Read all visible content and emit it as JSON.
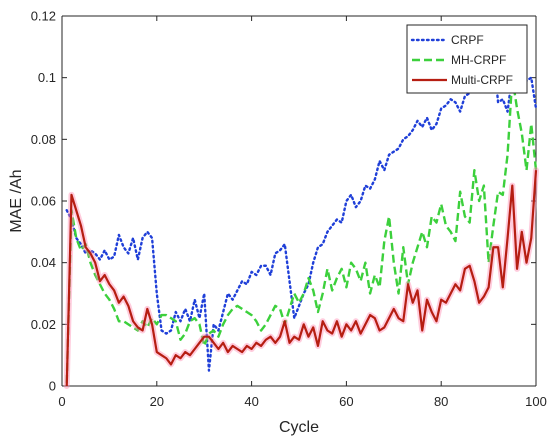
{
  "chart_data": {
    "type": "line",
    "title": "",
    "xlabel": "Cycle",
    "ylabel": "MAE /Ah",
    "xlim": [
      0,
      100
    ],
    "ylim": [
      0,
      0.12
    ],
    "xticks": [
      0,
      20,
      40,
      60,
      80,
      100
    ],
    "yticks": [
      0,
      0.02,
      0.04,
      0.06,
      0.08,
      0.1,
      0.12
    ],
    "xtick_labels": [
      "0",
      "20",
      "40",
      "60",
      "80",
      "100"
    ],
    "ytick_labels": [
      "0",
      "0.02",
      "0.04",
      "0.06",
      "0.08",
      "0.1",
      "0.12"
    ],
    "grid": false,
    "legend_position": "top-right",
    "series": [
      {
        "name": "CRPF",
        "color": "#1f3fd8",
        "style": "dotted",
        "x": [
          1,
          2,
          3,
          4,
          5,
          6,
          7,
          8,
          9,
          10,
          11,
          12,
          13,
          14,
          15,
          16,
          17,
          18,
          19,
          20,
          21,
          22,
          23,
          24,
          25,
          26,
          27,
          28,
          29,
          30,
          31,
          32,
          33,
          34,
          35,
          36,
          37,
          38,
          39,
          40,
          41,
          42,
          43,
          44,
          45,
          46,
          47,
          48,
          49,
          50,
          51,
          52,
          53,
          54,
          55,
          56,
          57,
          58,
          59,
          60,
          61,
          62,
          63,
          64,
          65,
          66,
          67,
          68,
          69,
          70,
          71,
          72,
          73,
          74,
          75,
          76,
          77,
          78,
          79,
          80,
          81,
          82,
          83,
          84,
          85,
          86,
          87,
          88,
          89,
          90,
          91,
          92,
          93,
          94,
          95,
          96,
          97,
          98,
          99,
          100
        ],
        "values": [
          0.057,
          0.054,
          0.048,
          0.046,
          0.043,
          0.044,
          0.043,
          0.041,
          0.044,
          0.041,
          0.042,
          0.049,
          0.045,
          0.043,
          0.048,
          0.041,
          0.048,
          0.05,
          0.048,
          0.03,
          0.018,
          0.017,
          0.018,
          0.024,
          0.021,
          0.025,
          0.021,
          0.028,
          0.022,
          0.03,
          0.005,
          0.02,
          0.018,
          0.024,
          0.03,
          0.028,
          0.031,
          0.034,
          0.033,
          0.037,
          0.036,
          0.039,
          0.039,
          0.036,
          0.043,
          0.044,
          0.046,
          0.034,
          0.022,
          0.026,
          0.03,
          0.033,
          0.04,
          0.045,
          0.046,
          0.05,
          0.052,
          0.054,
          0.053,
          0.06,
          0.062,
          0.058,
          0.06,
          0.065,
          0.064,
          0.067,
          0.073,
          0.07,
          0.075,
          0.076,
          0.077,
          0.08,
          0.081,
          0.083,
          0.086,
          0.084,
          0.087,
          0.083,
          0.085,
          0.09,
          0.091,
          0.093,
          0.092,
          0.089,
          0.094,
          0.095,
          0.097,
          0.099,
          0.097,
          0.106,
          0.108,
          0.092,
          0.093,
          0.089,
          0.101,
          0.099,
          0.096,
          0.099,
          0.1,
          0.09
        ]
      },
      {
        "name": "MH-CRPF",
        "color": "#3cd03c",
        "style": "dashed",
        "x": [
          1,
          2,
          3,
          4,
          5,
          6,
          7,
          8,
          9,
          10,
          11,
          12,
          13,
          14,
          15,
          16,
          17,
          18,
          19,
          20,
          21,
          22,
          23,
          24,
          25,
          26,
          27,
          28,
          29,
          30,
          31,
          32,
          33,
          34,
          35,
          36,
          37,
          38,
          39,
          40,
          41,
          42,
          43,
          44,
          45,
          46,
          47,
          48,
          49,
          50,
          51,
          52,
          53,
          54,
          55,
          56,
          57,
          58,
          59,
          60,
          61,
          62,
          63,
          64,
          65,
          66,
          67,
          68,
          69,
          70,
          71,
          72,
          73,
          74,
          75,
          76,
          77,
          78,
          79,
          80,
          81,
          82,
          83,
          84,
          85,
          86,
          87,
          88,
          89,
          90,
          91,
          92,
          93,
          94,
          95,
          96,
          97,
          98,
          99,
          100
        ],
        "values": [
          0.001,
          0.057,
          0.048,
          0.044,
          0.046,
          0.04,
          0.036,
          0.033,
          0.03,
          0.028,
          0.025,
          0.021,
          0.021,
          0.02,
          0.019,
          0.018,
          0.021,
          0.019,
          0.022,
          0.02,
          0.023,
          0.023,
          0.022,
          0.021,
          0.015,
          0.017,
          0.021,
          0.022,
          0.02,
          0.013,
          0.017,
          0.018,
          0.016,
          0.02,
          0.023,
          0.025,
          0.026,
          0.025,
          0.024,
          0.023,
          0.021,
          0.018,
          0.02,
          0.023,
          0.026,
          0.025,
          0.02,
          0.025,
          0.03,
          0.027,
          0.03,
          0.035,
          0.031,
          0.024,
          0.03,
          0.038,
          0.031,
          0.035,
          0.038,
          0.032,
          0.04,
          0.038,
          0.034,
          0.04,
          0.03,
          0.036,
          0.032,
          0.047,
          0.055,
          0.04,
          0.03,
          0.045,
          0.033,
          0.04,
          0.045,
          0.05,
          0.045,
          0.055,
          0.053,
          0.059,
          0.052,
          0.05,
          0.047,
          0.063,
          0.055,
          0.053,
          0.07,
          0.06,
          0.065,
          0.04,
          0.052,
          0.063,
          0.062,
          0.075,
          0.1,
          0.09,
          0.082,
          0.07,
          0.085,
          0.07
        ]
      },
      {
        "name": "Multi-CRPF",
        "color": "#b61e12",
        "style": "solid",
        "x": [
          1,
          2,
          3,
          4,
          5,
          6,
          7,
          8,
          9,
          10,
          11,
          12,
          13,
          14,
          15,
          16,
          17,
          18,
          19,
          20,
          21,
          22,
          23,
          24,
          25,
          26,
          27,
          28,
          29,
          30,
          31,
          32,
          33,
          34,
          35,
          36,
          37,
          38,
          39,
          40,
          41,
          42,
          43,
          44,
          45,
          46,
          47,
          48,
          49,
          50,
          51,
          52,
          53,
          54,
          55,
          56,
          57,
          58,
          59,
          60,
          61,
          62,
          63,
          64,
          65,
          66,
          67,
          68,
          69,
          70,
          71,
          72,
          73,
          74,
          75,
          76,
          77,
          78,
          79,
          80,
          81,
          82,
          83,
          84,
          85,
          86,
          87,
          88,
          89,
          90,
          91,
          92,
          93,
          94,
          95,
          96,
          97,
          98,
          99,
          100
        ],
        "values": [
          0.0,
          0.062,
          0.057,
          0.052,
          0.045,
          0.043,
          0.04,
          0.034,
          0.036,
          0.033,
          0.031,
          0.027,
          0.029,
          0.026,
          0.021,
          0.019,
          0.018,
          0.025,
          0.02,
          0.011,
          0.01,
          0.009,
          0.007,
          0.01,
          0.009,
          0.011,
          0.01,
          0.012,
          0.014,
          0.016,
          0.016,
          0.014,
          0.012,
          0.014,
          0.011,
          0.013,
          0.012,
          0.011,
          0.013,
          0.012,
          0.014,
          0.013,
          0.015,
          0.016,
          0.014,
          0.016,
          0.021,
          0.014,
          0.016,
          0.015,
          0.02,
          0.016,
          0.019,
          0.013,
          0.021,
          0.018,
          0.017,
          0.021,
          0.016,
          0.02,
          0.018,
          0.021,
          0.017,
          0.02,
          0.023,
          0.022,
          0.018,
          0.019,
          0.022,
          0.025,
          0.022,
          0.021,
          0.033,
          0.027,
          0.031,
          0.018,
          0.028,
          0.024,
          0.021,
          0.028,
          0.027,
          0.03,
          0.033,
          0.031,
          0.038,
          0.039,
          0.034,
          0.027,
          0.029,
          0.032,
          0.045,
          0.045,
          0.032,
          0.048,
          0.065,
          0.038,
          0.05,
          0.04,
          0.048,
          0.07
        ]
      }
    ]
  }
}
